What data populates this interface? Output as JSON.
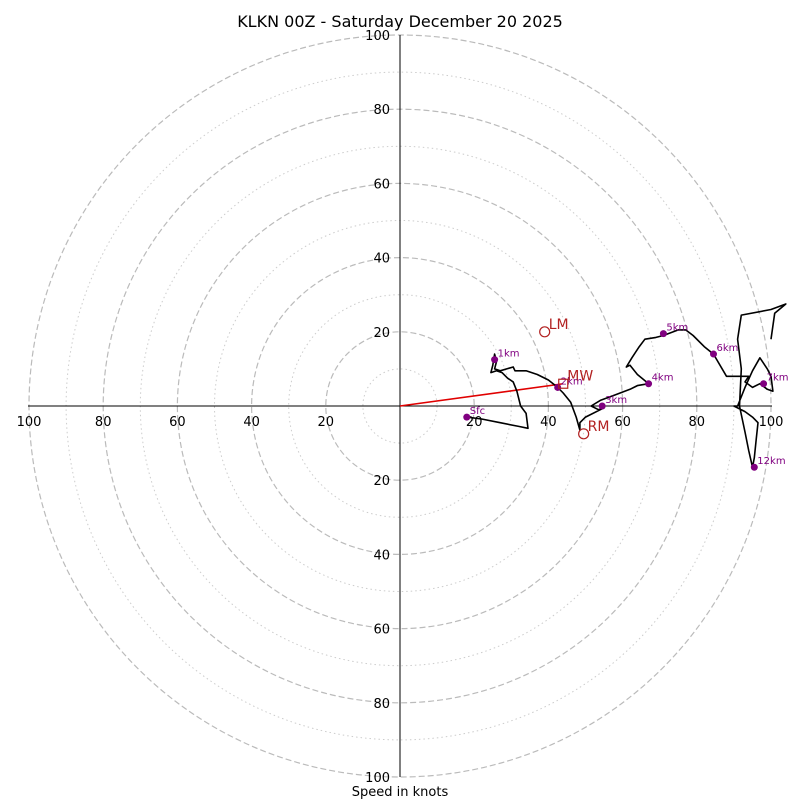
{
  "chart_data": {
    "type": "hodograph",
    "title": "KLKN 00Z - Saturday December 20 2025",
    "xlabel": "Speed in knots",
    "units": "knots",
    "max_speed": 100,
    "dashed_rings": [
      20,
      40,
      60,
      80,
      100
    ],
    "dotted_rings": [
      10,
      30,
      50,
      70,
      90
    ],
    "x_tick_labels": [
      "100",
      "80",
      "60",
      "40",
      "20",
      "20",
      "40",
      "60",
      "80",
      "100"
    ],
    "x_tick_values": [
      -100,
      -80,
      -60,
      -40,
      -20,
      20,
      40,
      60,
      80,
      100
    ],
    "y_tick_labels": [
      "100",
      "80",
      "60",
      "40",
      "20",
      "20",
      "40",
      "60",
      "80",
      "100"
    ],
    "y_tick_values": [
      100,
      80,
      60,
      40,
      20,
      -20,
      -40,
      -60,
      -80,
      -100
    ],
    "colors": {
      "grid": "#bbbbbb",
      "trace": "#000000",
      "height_marker": "#800080",
      "storm_motion": "#b22222",
      "shear_vector": "#e00000"
    },
    "trace": [
      [
        18,
        -3
      ],
      [
        22,
        -3.5
      ],
      [
        27,
        -4.5
      ],
      [
        32,
        -5.5
      ],
      [
        34.5,
        -6
      ],
      [
        34,
        -2
      ],
      [
        32.5,
        0
      ],
      [
        31.5,
        4
      ],
      [
        30.5,
        6.5
      ],
      [
        29,
        7.5
      ],
      [
        27.5,
        9
      ],
      [
        26,
        9.5
      ],
      [
        24.5,
        9
      ],
      [
        25,
        11
      ],
      [
        25.5,
        14
      ],
      [
        26,
        12
      ],
      [
        25.5,
        10
      ],
      [
        27,
        9.5
      ],
      [
        30.5,
        10.5
      ],
      [
        31,
        9.5
      ],
      [
        34,
        9.5
      ],
      [
        37,
        8.5
      ],
      [
        40,
        7
      ],
      [
        42.5,
        5
      ],
      [
        44,
        3.5
      ],
      [
        46,
        1
      ],
      [
        47.5,
        -3
      ],
      [
        48.5,
        -6.5
      ],
      [
        48.5,
        -4.5
      ],
      [
        50,
        -3
      ],
      [
        54,
        -1
      ],
      [
        55,
        -0.5
      ],
      [
        53.5,
        -1
      ],
      [
        51.5,
        0
      ],
      [
        54,
        1.5
      ],
      [
        58,
        3
      ],
      [
        62,
        4.5
      ],
      [
        64,
        5.5
      ],
      [
        67,
        6
      ],
      [
        64,
        8.5
      ],
      [
        62,
        11
      ],
      [
        61,
        10.5
      ],
      [
        62.5,
        13
      ],
      [
        64.5,
        16
      ],
      [
        66,
        18
      ],
      [
        69,
        18.5
      ],
      [
        71,
        19
      ],
      [
        75,
        20.5
      ],
      [
        77,
        20.5
      ],
      [
        79,
        19
      ],
      [
        82,
        16
      ],
      [
        84.5,
        14
      ],
      [
        88,
        8
      ],
      [
        92,
        8
      ],
      [
        94,
        8
      ],
      [
        93,
        6.5
      ],
      [
        95,
        5
      ],
      [
        97,
        6
      ],
      [
        99,
        4.5
      ],
      [
        100.5,
        4
      ],
      [
        100,
        8
      ],
      [
        99,
        10
      ],
      [
        97,
        13
      ],
      [
        95,
        9.5
      ],
      [
        93,
        5
      ],
      [
        91,
        0
      ],
      [
        90,
        0
      ],
      [
        93,
        -1.5
      ],
      [
        95,
        -3
      ],
      [
        96.5,
        -4.5
      ],
      [
        96,
        -9
      ],
      [
        95.5,
        -14
      ],
      [
        95,
        -16.5
      ],
      [
        94,
        -12
      ],
      [
        93,
        -7
      ],
      [
        91.5,
        0
      ],
      [
        92,
        10
      ],
      [
        91,
        18
      ],
      [
        92,
        24.5
      ],
      [
        100,
        26
      ],
      [
        104,
        27.5
      ],
      [
        101,
        25
      ],
      [
        100,
        18
      ]
    ],
    "height_markers": [
      {
        "label": "Sfc",
        "u": 18,
        "v": -3
      },
      {
        "label": "1km",
        "u": 25.5,
        "v": 12.5
      },
      {
        "label": "2km",
        "u": 42.5,
        "v": 5
      },
      {
        "label": "3km",
        "u": 54.5,
        "v": 0
      },
      {
        "label": "4km",
        "u": 67,
        "v": 6
      },
      {
        "label": "5km",
        "u": 71,
        "v": 19.5
      },
      {
        "label": "6km",
        "u": 84.5,
        "v": 14
      },
      {
        "label": "7km",
        "u": 98,
        "v": 6
      },
      {
        "label": "12km",
        "u": 95.5,
        "v": -16.5
      }
    ],
    "storm_motions": [
      {
        "label": "LM",
        "u": 39,
        "v": 20
      },
      {
        "label": "MW",
        "u": 44,
        "v": 6
      },
      {
        "label": "RM",
        "u": 49.5,
        "v": -7.5
      }
    ],
    "mean_wind_vector": {
      "u": 44,
      "v": 6
    }
  }
}
